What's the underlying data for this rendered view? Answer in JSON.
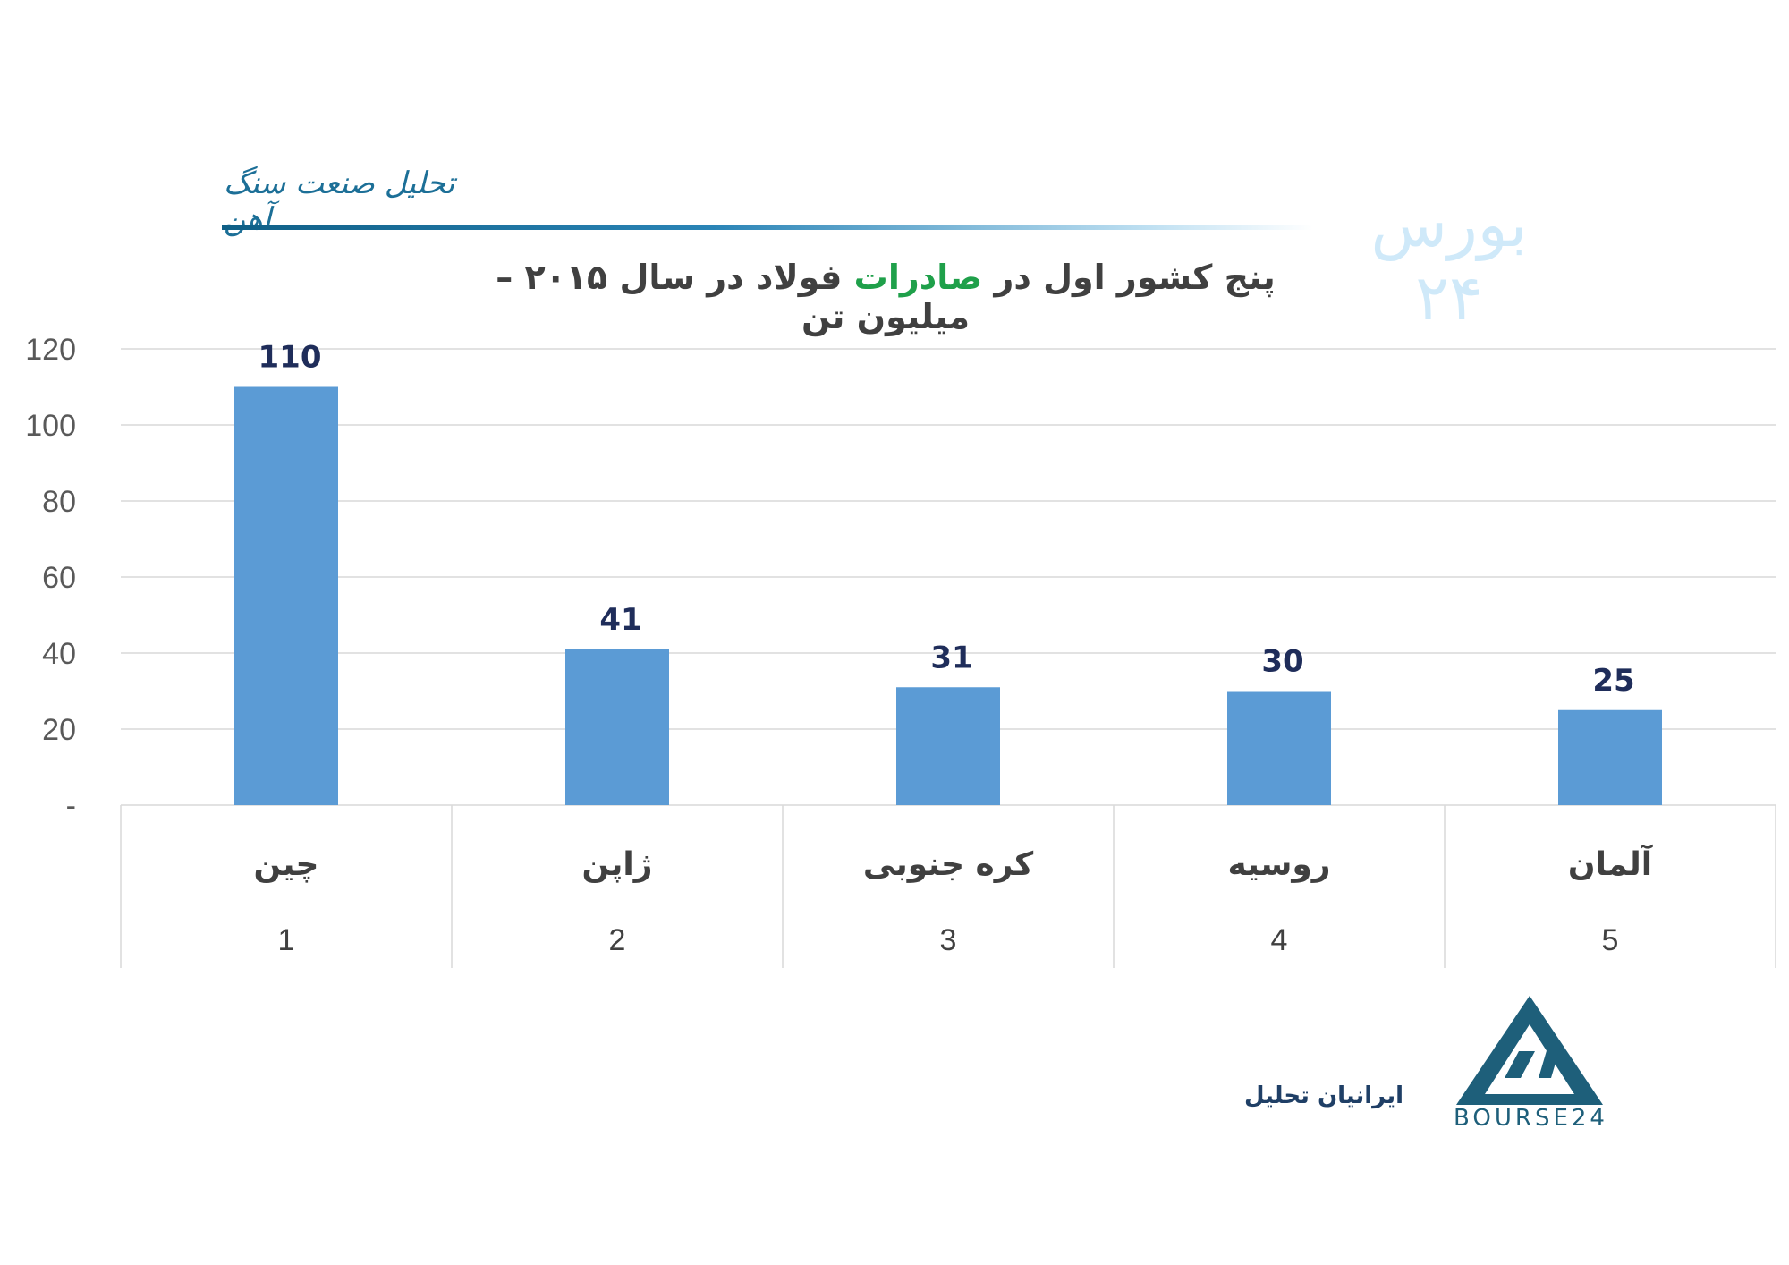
{
  "header": {
    "title": "تحلیل صنعت سنگ آهن",
    "brand_mark": "بورس ۲۴"
  },
  "title_parts": {
    "before": "پنج کشور اول در ",
    "highlight": "صادرات",
    "after": " فولاد در سال ۲۰۱۵ –  میلیون تن"
  },
  "footer": {
    "brand_text": "ایرانیان تحلیل",
    "logo_text": "BOURSE24"
  },
  "colors": {
    "bar": "#5b9bd5",
    "highlight": "#1fa04a",
    "value_label": "#1f2d5a",
    "grid": "#d9d9d9"
  },
  "chart_data": {
    "type": "bar",
    "categories": [
      "چین",
      "ژاپن",
      "کره جنوبی",
      "روسیه",
      "آلمان"
    ],
    "ranks": [
      "1",
      "2",
      "3",
      "4",
      "5"
    ],
    "values": [
      110,
      41,
      31,
      30,
      25
    ],
    "value_labels": [
      "110",
      "41",
      "31",
      "30",
      "25"
    ],
    "title": "پنج کشور اول در صادرات فولاد در سال ۲۰۱۵ –  میلیون تن",
    "xlabel": "",
    "ylabel": "",
    "ylim": [
      0,
      120
    ],
    "yticks": [
      0,
      20,
      40,
      60,
      80,
      100,
      120
    ],
    "ytick_labels": [
      "-",
      "20",
      "40",
      "60",
      "80",
      "100",
      "120"
    ],
    "grid": true,
    "legend": false
  }
}
